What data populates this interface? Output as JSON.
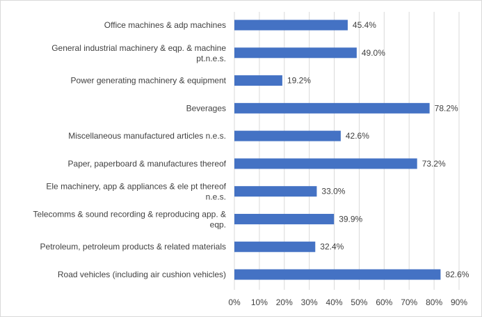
{
  "chart_data": {
    "type": "bar",
    "orientation": "horizontal",
    "categories": [
      "Office machines & adp machines",
      "General industrial machinery & eqp. & machine pt.n.e.s.",
      "Power generating machinery & equipment",
      "Beverages",
      "Miscellaneous manufactured articles n.e.s.",
      "Paper, paperboard & manufactures thereof",
      "Ele machinery, app & appliances & ele pt thereof n.e.s.",
      "Telecomms & sound recording & reproducing app. & eqp.",
      "Petroleum, petroleum products & related materials",
      "Road vehicles (including air cushion vehicles)"
    ],
    "values": [
      45.4,
      49.0,
      19.2,
      78.2,
      42.6,
      73.2,
      33.0,
      39.9,
      32.4,
      82.6
    ],
    "value_labels": [
      "45.4%",
      "49.0%",
      "19.2%",
      "78.2%",
      "42.6%",
      "73.2%",
      "33.0%",
      "39.9%",
      "32.4%",
      "82.6%"
    ],
    "xlim": [
      0,
      90
    ],
    "xticks": [
      "0%",
      "10%",
      "20%",
      "30%",
      "40%",
      "50%",
      "60%",
      "70%",
      "80%",
      "90%"
    ],
    "grid": true,
    "bar_color": "#4472c4",
    "title": "",
    "xlabel": "",
    "ylabel": ""
  }
}
